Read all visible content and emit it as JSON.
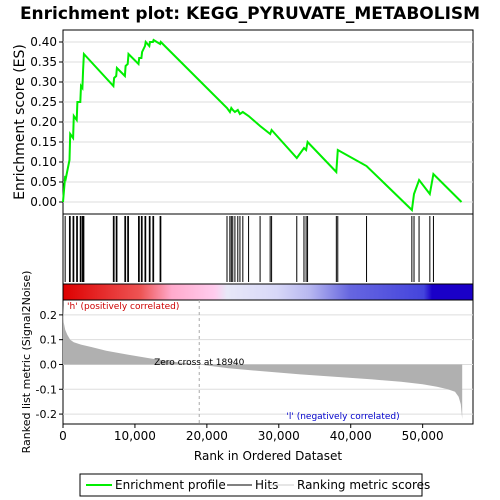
{
  "chart_data": {
    "type": "line",
    "title": "Enrichment plot: KEGG_PYRUVATE_METABOLISM",
    "top_panel": {
      "ylabel": "Enrichment score (ES)",
      "ylim": [
        -0.03,
        0.43
      ],
      "yticks": [
        0.0,
        0.05,
        0.1,
        0.15,
        0.2,
        0.25,
        0.3,
        0.35,
        0.4
      ],
      "ytick_labels": [
        "0.00",
        "0.05",
        "0.10",
        "0.15",
        "0.20",
        "0.25",
        "0.30",
        "0.35",
        "0.40"
      ],
      "series": [
        {
          "name": "Enrichment profile",
          "color": "#00ee00",
          "x": [
            0,
            300,
            400,
            900,
            1000,
            1400,
            1500,
            1900,
            2000,
            2400,
            2500,
            2700,
            2800,
            2900,
            7000,
            7100,
            7400,
            7500,
            8600,
            8700,
            9000,
            9100,
            10500,
            10600,
            10900,
            11000,
            11400,
            11500,
            12000,
            12100,
            12500,
            12600,
            13500,
            13600,
            22800,
            23200,
            23400,
            23600,
            23900,
            24300,
            24600,
            25000,
            25800,
            27400,
            28800,
            29000,
            32500,
            33500,
            33800,
            34000,
            38000,
            38200,
            42200,
            48500,
            48800,
            49500,
            51000,
            51500,
            55400
          ],
          "values": [
            0.0,
            0.065,
            0.06,
            0.105,
            0.17,
            0.16,
            0.215,
            0.205,
            0.25,
            0.25,
            0.29,
            0.285,
            0.33,
            0.37,
            0.29,
            0.31,
            0.315,
            0.335,
            0.315,
            0.34,
            0.345,
            0.37,
            0.345,
            0.36,
            0.36,
            0.375,
            0.39,
            0.4,
            0.39,
            0.4,
            0.4,
            0.405,
            0.395,
            0.4,
            0.235,
            0.225,
            0.235,
            0.23,
            0.225,
            0.23,
            0.22,
            0.225,
            0.215,
            0.19,
            0.17,
            0.18,
            0.11,
            0.135,
            0.13,
            0.15,
            0.075,
            0.13,
            0.09,
            -0.02,
            0.02,
            0.055,
            0.02,
            0.07,
            0.0
          ]
        }
      ],
      "hits": [
        300,
        900,
        1000,
        1400,
        1500,
        1900,
        2000,
        2400,
        2500,
        2700,
        2800,
        2900,
        7000,
        7100,
        7400,
        7500,
        8600,
        8700,
        9000,
        9100,
        10500,
        10600,
        10900,
        11000,
        11400,
        11500,
        12000,
        12100,
        12500,
        12600,
        13500,
        13600,
        22800,
        23200,
        23400,
        23600,
        23900,
        24300,
        24600,
        25000,
        25800,
        27400,
        28800,
        29000,
        32500,
        33500,
        33800,
        34000,
        38000,
        38200,
        42200,
        48500,
        48800,
        49500,
        51000,
        51500
      ]
    },
    "bottom_panel": {
      "ylabel": "Ranked list metric (Signal2Noise)",
      "xlabel": "Rank in Ordered Dataset",
      "ylim": [
        -0.24,
        0.26
      ],
      "yticks": [
        -0.2,
        -0.1,
        0.0,
        0.1,
        0.2
      ],
      "ytick_labels": [
        "-0.2",
        "-0.1",
        "0.0",
        "0.1",
        "0.2"
      ],
      "xlim": [
        0,
        57000
      ],
      "xticks": [
        0,
        10000,
        20000,
        30000,
        40000,
        50000
      ],
      "xtick_labels": [
        "0",
        "10,000",
        "20,000",
        "30,000",
        "40,000",
        "50,000"
      ],
      "metric_x": [
        0,
        100,
        300,
        600,
        1000,
        1500,
        2500,
        4000,
        6000,
        9000,
        12000,
        15000,
        18940,
        23000,
        28000,
        33000,
        38000,
        43000,
        47000,
        50000,
        52000,
        53500,
        54500,
        55000,
        55300,
        55500
      ],
      "metric_values": [
        0.24,
        0.17,
        0.14,
        0.12,
        0.1,
        0.09,
        0.08,
        0.07,
        0.055,
        0.04,
        0.025,
        0.012,
        0.0,
        -0.015,
        -0.028,
        -0.04,
        -0.05,
        -0.06,
        -0.07,
        -0.08,
        -0.09,
        -0.1,
        -0.11,
        -0.13,
        -0.16,
        -0.22
      ],
      "zero_cross_label": "Zero cross at 18940",
      "zero_cross_x": 18940,
      "pos_label": "'h' (positively correlated)",
      "neg_label": "'l' (negatively correlated)",
      "pos_color": "#cc0000",
      "neg_color": "#0000cc"
    },
    "legend": {
      "placement": "bottom",
      "items": [
        "Enrichment profile",
        "Hits",
        "Ranking metric scores"
      ]
    }
  }
}
